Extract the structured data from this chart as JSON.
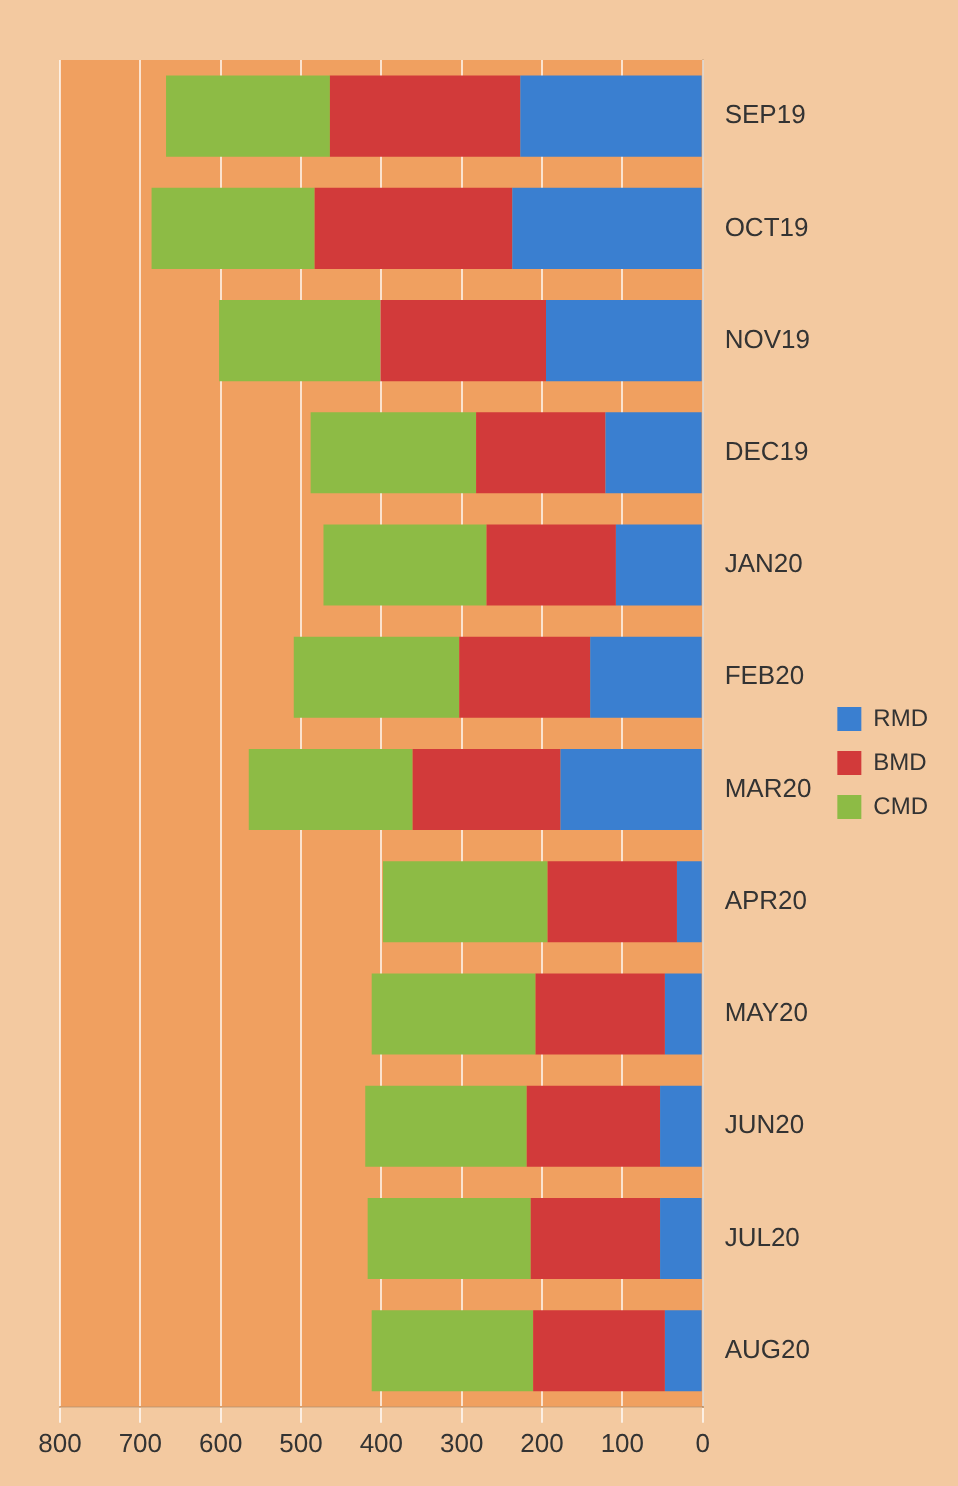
{
  "chart_data": {
    "type": "bar",
    "orientation": "horizontal",
    "stacked": true,
    "categories": [
      "SEP19",
      "OCT19",
      "NOV19",
      "DEC19",
      "JAN20",
      "FEB20",
      "MAR20",
      "APR20",
      "MAY20",
      "JUN20",
      "JUL20",
      "AUG20"
    ],
    "series": [
      {
        "name": "RMD",
        "color": "#3a7fd0",
        "values": [
          227,
          237,
          195,
          121,
          108,
          140,
          177,
          32,
          47,
          53,
          53,
          47
        ]
      },
      {
        "name": "BMD",
        "color": "#d23a3a",
        "values": [
          237,
          246,
          206,
          161,
          161,
          163,
          184,
          161,
          161,
          166,
          161,
          164
        ]
      },
      {
        "name": "CMD",
        "color": "#8dbb45",
        "values": [
          204,
          203,
          201,
          206,
          203,
          206,
          204,
          205,
          204,
          201,
          203,
          201
        ]
      }
    ],
    "xlim": [
      800,
      0
    ],
    "xticks": [
      800,
      700,
      600,
      500,
      400,
      300,
      200,
      100,
      0
    ],
    "grid": "x",
    "legend": "right"
  }
}
